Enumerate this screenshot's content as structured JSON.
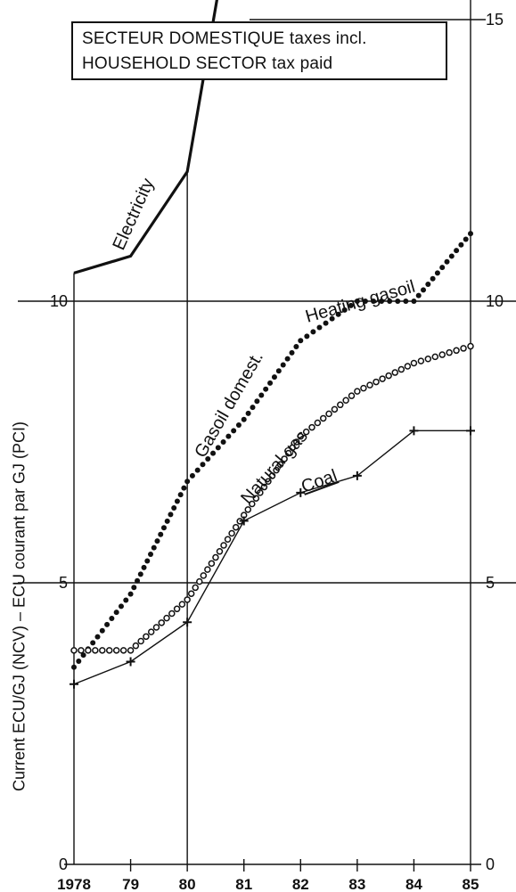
{
  "chart_data": {
    "type": "line",
    "title_lines": [
      "SECTEUR DOMESTIQUE taxes incl.",
      "HOUSEHOLD SECTOR tax paid"
    ],
    "ylabel": "Current ECU/GJ (NCV) – ECU courant par GJ (PCI)",
    "x_tick_labels": [
      "1978",
      "79",
      "80",
      "81",
      "82",
      "83",
      "84",
      "85"
    ],
    "y_ticks": [
      0,
      5,
      10,
      15
    ],
    "y_tick_labels_left": [
      "0",
      "5",
      "10"
    ],
    "y_tick_labels_right": [
      "0",
      "5",
      "10",
      "15"
    ],
    "ylim": [
      0,
      15.5
    ],
    "xlim": [
      1978,
      1985
    ],
    "grid": "horizontal at 5, 10, 15; vertical at 1978, 1979, 1980, 1985",
    "series": [
      {
        "name": "Electricity",
        "style": "solid-thick",
        "x": [
          1978,
          1979,
          1980,
          1980.6
        ],
        "y": [
          10.5,
          10.8,
          12.3,
          15.8
        ]
      },
      {
        "name": "Gasoil domest. / Heating gasoil",
        "label_upper": "Heating gasoil",
        "label_lower": "Gasoil domest.",
        "style": "dotted-bold",
        "x": [
          1978,
          1979,
          1980,
          1981,
          1982,
          1983,
          1984,
          1985
        ],
        "y": [
          3.5,
          4.8,
          6.8,
          7.9,
          9.3,
          10.0,
          10.0,
          11.2
        ]
      },
      {
        "name": "Natural gas",
        "style": "circles",
        "x": [
          1978,
          1979,
          1980,
          1981,
          1982,
          1983,
          1984,
          1985
        ],
        "y": [
          3.8,
          3.8,
          4.7,
          6.2,
          7.6,
          8.4,
          8.9,
          9.2
        ]
      },
      {
        "name": "Coal",
        "style": "crosses",
        "x": [
          1978,
          1979,
          1980,
          1981,
          1982,
          1983,
          1984,
          1985
        ],
        "y": [
          3.2,
          3.6,
          4.3,
          6.1,
          6.6,
          6.9,
          7.7,
          7.7
        ]
      }
    ]
  }
}
